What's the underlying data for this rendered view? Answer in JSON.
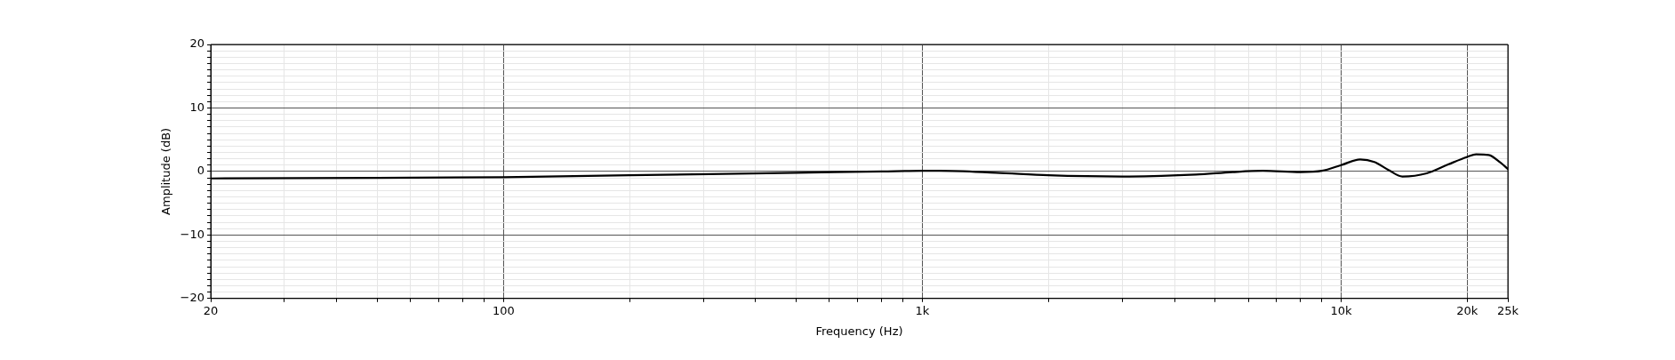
{
  "chart_data": {
    "type": "line",
    "xlabel": "Frequency (Hz)",
    "ylabel": "Amplitude (dB)",
    "log": "x",
    "grid": true,
    "legend": false,
    "marker": "none",
    "line_style": "solid",
    "xlim": [
      20,
      25000
    ],
    "ylim": [
      -20,
      20
    ],
    "xticks": [
      {
        "value": 20,
        "label": "20"
      },
      {
        "value": 30,
        "label": null
      },
      {
        "value": 40,
        "label": null
      },
      {
        "value": 50,
        "label": null
      },
      {
        "value": 60,
        "label": null
      },
      {
        "value": 70,
        "label": null
      },
      {
        "value": 80,
        "label": null
      },
      {
        "value": 90,
        "label": null
      },
      {
        "value": 100,
        "label": "100"
      },
      {
        "value": 200,
        "label": null
      },
      {
        "value": 300,
        "label": null
      },
      {
        "value": 400,
        "label": null
      },
      {
        "value": 500,
        "label": null
      },
      {
        "value": 600,
        "label": null
      },
      {
        "value": 700,
        "label": null
      },
      {
        "value": 800,
        "label": null
      },
      {
        "value": 900,
        "label": null
      },
      {
        "value": 1000,
        "label": "1k"
      },
      {
        "value": 2000,
        "label": null
      },
      {
        "value": 3000,
        "label": null
      },
      {
        "value": 4000,
        "label": null
      },
      {
        "value": 5000,
        "label": null
      },
      {
        "value": 6000,
        "label": null
      },
      {
        "value": 7000,
        "label": null
      },
      {
        "value": 8000,
        "label": null
      },
      {
        "value": 9000,
        "label": null
      },
      {
        "value": 10000,
        "label": "10k"
      },
      {
        "value": 20000,
        "label": "20k"
      },
      {
        "value": 25000,
        "label": "25k"
      }
    ],
    "yticks": [
      -20,
      {
        "value": -19,
        "label": null
      },
      {
        "value": -18,
        "label": null
      },
      {
        "value": -17,
        "label": null
      },
      {
        "value": -16,
        "label": null
      },
      {
        "value": -15,
        "label": null
      },
      {
        "value": -14,
        "label": null
      },
      {
        "value": -13,
        "label": null
      },
      {
        "value": -12,
        "label": null
      },
      {
        "value": -11,
        "label": null
      },
      -10,
      {
        "value": -9,
        "label": null
      },
      {
        "value": -8,
        "label": null
      },
      {
        "value": -7,
        "label": null
      },
      {
        "value": -6,
        "label": null
      },
      {
        "value": -5,
        "label": null
      },
      {
        "value": -4,
        "label": null
      },
      {
        "value": -3,
        "label": null
      },
      {
        "value": -2,
        "label": null
      },
      {
        "value": -1,
        "label": null
      },
      0,
      {
        "value": 1,
        "label": null
      },
      {
        "value": 2,
        "label": null
      },
      {
        "value": 3,
        "label": null
      },
      {
        "value": 4,
        "label": null
      },
      {
        "value": 5,
        "label": null
      },
      {
        "value": 6,
        "label": null
      },
      {
        "value": 7,
        "label": null
      },
      {
        "value": 8,
        "label": null
      },
      {
        "value": 9,
        "label": null
      },
      10,
      {
        "value": 11,
        "label": null
      },
      {
        "value": 12,
        "label": null
      },
      {
        "value": 13,
        "label": null
      },
      {
        "value": 14,
        "label": null
      },
      {
        "value": 15,
        "label": null
      },
      {
        "value": 16,
        "label": null
      },
      {
        "value": 17,
        "label": null
      },
      {
        "value": 18,
        "label": null
      },
      {
        "value": 19,
        "label": null
      },
      20
    ],
    "x": [
      20,
      50,
      100,
      200,
      500,
      800,
      1000,
      1100,
      1500,
      2000,
      3000,
      4500,
      5500,
      6500,
      8000,
      9000,
      10000,
      11100,
      12000,
      13000,
      14000,
      16000,
      18000,
      20000,
      21000,
      22500,
      24000,
      25000
    ],
    "series": [
      {
        "color": "#000000",
        "values": [
          -1.1,
          -1.0,
          -0.9,
          -0.6,
          -0.2,
          0,
          0.1,
          0.1,
          -0.2,
          -0.6,
          -0.8,
          -0.5,
          -0.1,
          0.1,
          -0.1,
          0.1,
          1.0,
          1.9,
          1.5,
          0.2,
          -0.8,
          -0.3,
          1.1,
          2.3,
          2.7,
          2.6,
          1.4,
          0.4
        ]
      }
    ]
  }
}
